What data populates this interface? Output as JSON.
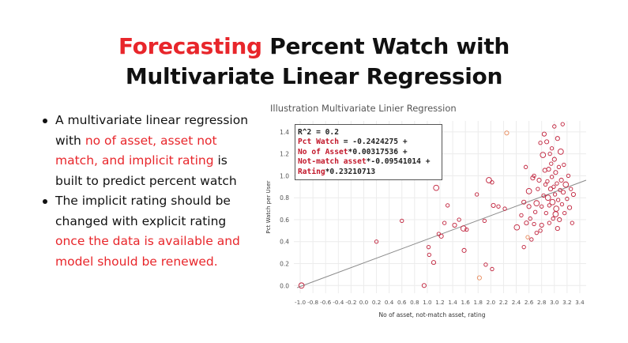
{
  "slide": {
    "title_accent": "Forecasting",
    "title_rest1": " Percent Watch  with",
    "title_line2": "Multivariate Linear Regression",
    "bullet1": {
      "t1": "A multivariate linear regression with ",
      "r1": "no of asset, asset not match, and implicit rating",
      "t2": " is built to predict percent watch"
    },
    "bullet2": {
      "t1": "The implicit rating should be changed with explicit rating ",
      "r1": "once the data is available and model should be renewed."
    }
  },
  "equation": {
    "line1": "R^2 = 0.2",
    "l2_red": "Pct Watch",
    "l2_rest": " = -0.2424275 +",
    "l3_red": "No of Asset",
    "l3_rest": "*0.00317536 +",
    "l4_red": "Not-match asset",
    "l4_rest": "*-0.09541014 +",
    "l5_red": "Rating",
    "l5_rest": "*0.23210713"
  },
  "chart_data": {
    "type": "scatter",
    "title": "Illustration Multivariate Linier Regression",
    "xlabel": "No of asset, not-match asset, rating",
    "ylabel": "Pct Watch per User",
    "xlim": [
      -1.1,
      3.5
    ],
    "ylim": [
      -0.07,
      1.5
    ],
    "xticks": [
      -1.0,
      -0.8,
      -0.6,
      -0.4,
      -0.2,
      0.0,
      0.2,
      0.4,
      0.6,
      0.8,
      1.0,
      1.2,
      1.4,
      1.6,
      1.8,
      2.0,
      2.2,
      2.4,
      2.6,
      2.8,
      3.0,
      3.2,
      3.4
    ],
    "xtick_labels": [
      "-1.0",
      "-0.8",
      "-0.6",
      "-0.4",
      "-0.2",
      "0.0",
      "0.2",
      "0.4",
      "0.6",
      "0.8",
      "1.0",
      "1.2",
      "1.4",
      "1.6",
      "1.8",
      "2.0",
      "2.2",
      "2.4",
      "2.6",
      "2.8",
      "3.0",
      "3.2",
      "3.4"
    ],
    "yticks": [
      0.0,
      0.2,
      0.4,
      0.6,
      0.8,
      1.0,
      1.2,
      1.4
    ],
    "ytick_labels": [
      "0.0",
      "0.2",
      "0.4",
      "0.6",
      "0.8",
      "1.0",
      "1.2",
      "1.4"
    ],
    "grid": true,
    "trendline": {
      "x": [
        -1.05,
        3.5
      ],
      "y": [
        -0.02,
        0.96
      ]
    },
    "colors": {
      "point": "#c0203a",
      "point_alt": "#e88a5a",
      "trend": "#8a8a8a",
      "grid": "#ececec"
    },
    "points": [
      {
        "x": -0.98,
        "y": 0.0
      },
      {
        "x": 0.2,
        "y": 0.4
      },
      {
        "x": 0.6,
        "y": 0.59
      },
      {
        "x": 0.95,
        "y": 0.0
      },
      {
        "x": 1.02,
        "y": 0.35
      },
      {
        "x": 1.03,
        "y": 0.28
      },
      {
        "x": 1.1,
        "y": 0.21
      },
      {
        "x": 1.14,
        "y": 0.89
      },
      {
        "x": 1.18,
        "y": 0.47
      },
      {
        "x": 1.22,
        "y": 0.45
      },
      {
        "x": 1.27,
        "y": 0.57
      },
      {
        "x": 1.32,
        "y": 0.73
      },
      {
        "x": 1.43,
        "y": 0.55
      },
      {
        "x": 1.5,
        "y": 0.6
      },
      {
        "x": 1.57,
        "y": 0.52
      },
      {
        "x": 1.58,
        "y": 0.32
      },
      {
        "x": 1.62,
        "y": 0.51
      },
      {
        "x": 1.78,
        "y": 0.83
      },
      {
        "x": 1.82,
        "y": 0.07
      },
      {
        "x": 1.9,
        "y": 0.59
      },
      {
        "x": 1.92,
        "y": 0.19
      },
      {
        "x": 1.97,
        "y": 0.96
      },
      {
        "x": 2.02,
        "y": 0.94
      },
      {
        "x": 2.02,
        "y": 0.15
      },
      {
        "x": 2.04,
        "y": 0.73
      },
      {
        "x": 2.12,
        "y": 0.72
      },
      {
        "x": 2.22,
        "y": 0.7
      },
      {
        "x": 2.25,
        "y": 1.39
      },
      {
        "x": 2.41,
        "y": 0.53
      },
      {
        "x": 2.48,
        "y": 0.64
      },
      {
        "x": 2.52,
        "y": 0.76
      },
      {
        "x": 2.52,
        "y": 0.35
      },
      {
        "x": 2.55,
        "y": 1.08
      },
      {
        "x": 2.56,
        "y": 0.57
      },
      {
        "x": 2.58,
        "y": 0.44
      },
      {
        "x": 2.6,
        "y": 0.86
      },
      {
        "x": 2.6,
        "y": 0.72
      },
      {
        "x": 2.62,
        "y": 0.61
      },
      {
        "x": 2.64,
        "y": 0.42
      },
      {
        "x": 2.66,
        "y": 0.98
      },
      {
        "x": 2.68,
        "y": 1.0
      },
      {
        "x": 2.7,
        "y": 0.67
      },
      {
        "x": 2.72,
        "y": 0.75
      },
      {
        "x": 2.72,
        "y": 0.48
      },
      {
        "x": 2.74,
        "y": 0.88
      },
      {
        "x": 2.76,
        "y": 0.96
      },
      {
        "x": 2.78,
        "y": 1.3
      },
      {
        "x": 2.8,
        "y": 0.72
      },
      {
        "x": 2.8,
        "y": 0.55
      },
      {
        "x": 2.82,
        "y": 1.19
      },
      {
        "x": 2.83,
        "y": 0.82
      },
      {
        "x": 2.85,
        "y": 1.05
      },
      {
        "x": 2.86,
        "y": 0.92
      },
      {
        "x": 2.87,
        "y": 0.66
      },
      {
        "x": 2.88,
        "y": 1.31
      },
      {
        "x": 2.89,
        "y": 0.95
      },
      {
        "x": 2.9,
        "y": 0.8
      },
      {
        "x": 2.91,
        "y": 1.06
      },
      {
        "x": 2.92,
        "y": 0.73
      },
      {
        "x": 2.93,
        "y": 1.2
      },
      {
        "x": 2.94,
        "y": 0.88
      },
      {
        "x": 2.95,
        "y": 1.11
      },
      {
        "x": 2.96,
        "y": 0.99
      },
      {
        "x": 2.97,
        "y": 0.76
      },
      {
        "x": 2.98,
        "y": 0.61
      },
      {
        "x": 2.99,
        "y": 0.9
      },
      {
        "x": 3.0,
        "y": 1.15
      },
      {
        "x": 3.0,
        "y": 1.45
      },
      {
        "x": 3.01,
        "y": 0.83
      },
      {
        "x": 3.02,
        "y": 1.03
      },
      {
        "x": 3.03,
        "y": 0.7
      },
      {
        "x": 3.04,
        "y": 0.93
      },
      {
        "x": 3.05,
        "y": 1.34
      },
      {
        "x": 3.06,
        "y": 0.78
      },
      {
        "x": 3.07,
        "y": 1.08
      },
      {
        "x": 3.08,
        "y": 0.6
      },
      {
        "x": 3.09,
        "y": 0.87
      },
      {
        "x": 3.1,
        "y": 1.22
      },
      {
        "x": 3.11,
        "y": 0.96
      },
      {
        "x": 3.12,
        "y": 0.74
      },
      {
        "x": 3.13,
        "y": 1.47
      },
      {
        "x": 3.14,
        "y": 0.85
      },
      {
        "x": 3.15,
        "y": 1.1
      },
      {
        "x": 3.16,
        "y": 0.66
      },
      {
        "x": 3.18,
        "y": 0.92
      },
      {
        "x": 3.2,
        "y": 0.79
      },
      {
        "x": 3.22,
        "y": 1.0
      },
      {
        "x": 3.24,
        "y": 0.71
      },
      {
        "x": 3.26,
        "y": 0.88
      },
      {
        "x": 3.28,
        "y": 0.57
      },
      {
        "x": 3.3,
        "y": 0.83
      },
      {
        "x": 3.02,
        "y": 0.65
      },
      {
        "x": 2.92,
        "y": 0.57
      },
      {
        "x": 3.05,
        "y": 0.52
      },
      {
        "x": 2.78,
        "y": 0.5
      },
      {
        "x": 2.68,
        "y": 0.56
      },
      {
        "x": 2.84,
        "y": 1.38
      },
      {
        "x": 2.96,
        "y": 1.25
      }
    ]
  }
}
